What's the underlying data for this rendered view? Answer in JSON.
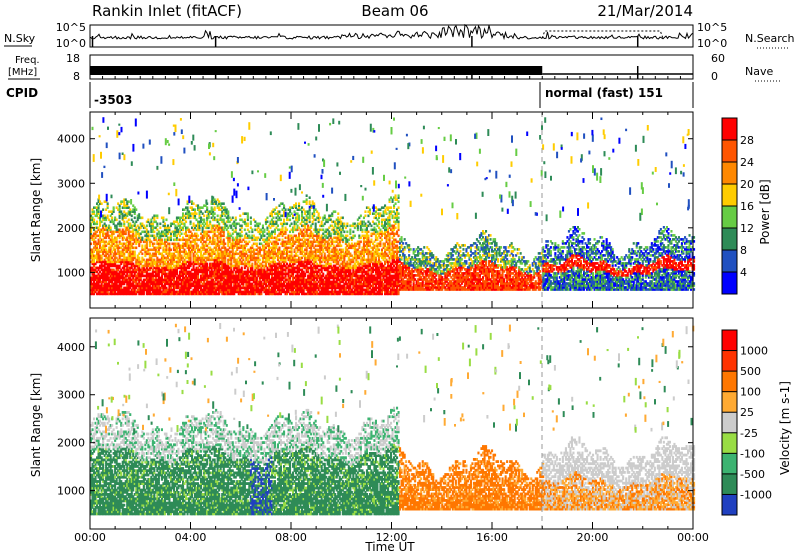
{
  "header": {
    "station": "Rankin Inlet (fitACF)",
    "beam": "Beam 06",
    "date": "21/Mar/2014"
  },
  "noise_panel": {
    "left_label": "N.Sky",
    "right_label": "N.Search",
    "left_ticks": [
      "10^5",
      "10^0"
    ],
    "right_ticks": [
      "10^5",
      "10^0"
    ],
    "right_line_style": "dotted"
  },
  "freq_panel": {
    "left_label_1": "Freq.",
    "left_label_2": "[MHz]",
    "right_label": "Nave",
    "left_ticks": [
      "18",
      "8"
    ],
    "right_ticks": [
      "60",
      "0"
    ],
    "right_line_style": "dotted"
  },
  "cpid_panel": {
    "label": "CPID",
    "segments": [
      {
        "start_hour": 0,
        "text": "-3503"
      },
      {
        "start_hour": 18,
        "text": "normal (fast) 151"
      }
    ]
  },
  "chart_data": [
    {
      "type": "heatmap",
      "title": "Power",
      "xlabel": "",
      "ylabel": "Slant Range [km]",
      "xlim_hours": [
        0,
        24
      ],
      "ylim": [
        200,
        4600
      ],
      "yticks": [
        1000,
        2000,
        3000,
        4000
      ],
      "colorbar": {
        "label": "Power [dB]",
        "tick_labels": [
          "4",
          "8",
          "12",
          "16",
          "20",
          "24",
          "28"
        ],
        "colors": [
          "#0000ff",
          "#2050c0",
          "#2e8b57",
          "#66cc44",
          "#ffcc00",
          "#ff8800",
          "#ff5500",
          "#ff0000"
        ]
      },
      "echo_regions_km": [
        {
          "from_hour": 0,
          "to_hour": 12.3,
          "range_min": 500,
          "range_max": 2400,
          "dominant": "red-orange"
        },
        {
          "from_hour": 12.3,
          "to_hour": 18,
          "range_min": 600,
          "range_max": 1600,
          "dominant": "orange-red"
        },
        {
          "from_hour": 18,
          "to_hour": 24,
          "range_min": 600,
          "range_max": 1700,
          "dominant": "green-red"
        }
      ]
    },
    {
      "type": "heatmap",
      "title": "Velocity",
      "xlabel": "Time UT",
      "ylabel": "Slant Range [km]",
      "xlim_hours": [
        0,
        24
      ],
      "xticks": [
        "00:00",
        "04:00",
        "08:00",
        "12:00",
        "16:00",
        "20:00",
        "00:00"
      ],
      "ylim": [
        200,
        4600
      ],
      "yticks": [
        1000,
        2000,
        3000,
        4000
      ],
      "colorbar": {
        "label": "Velocity [m s-1]",
        "tick_labels": [
          "1000",
          "500",
          "100",
          "25",
          "-25",
          "-100",
          "-500",
          "-1000"
        ],
        "colors": [
          "#2040c0",
          "#2e8b57",
          "#3cb371",
          "#99dd44",
          "#cccccc",
          "#ffaa33",
          "#ff7700",
          "#ff3300",
          "#ff0000"
        ]
      },
      "echo_regions_km": [
        {
          "from_hour": 0,
          "to_hour": 12.3,
          "range_min": 500,
          "range_max": 2400,
          "dominant": "green"
        },
        {
          "from_hour": 12.3,
          "to_hour": 18,
          "range_min": 600,
          "range_max": 1600,
          "dominant": "orange"
        },
        {
          "from_hour": 18,
          "to_hour": 24,
          "range_min": 600,
          "range_max": 1800,
          "dominant": "orange-gray"
        }
      ]
    }
  ]
}
